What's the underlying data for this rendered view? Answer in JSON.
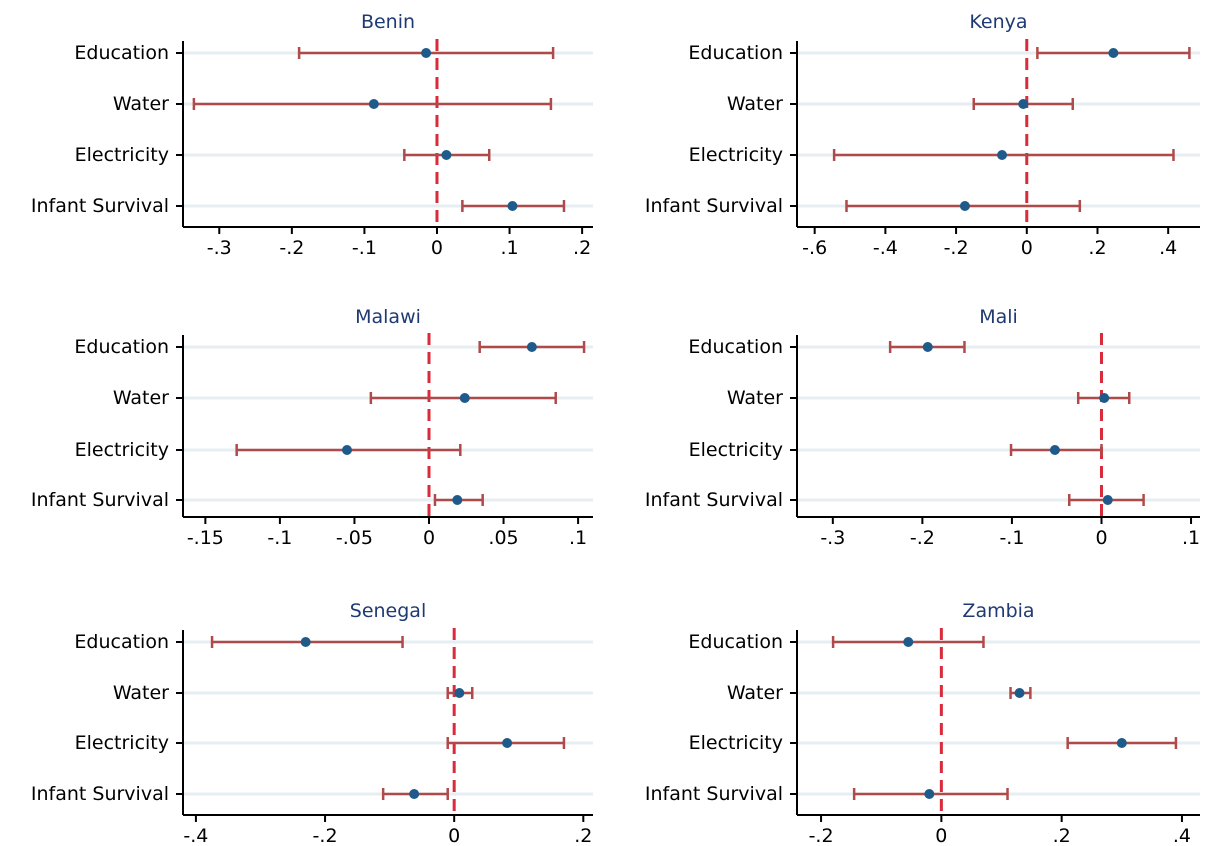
{
  "figure": {
    "colors": {
      "point": "#1f5b8a",
      "interval": "#b04a4a",
      "zero_line": "#d92b3a",
      "grid": "#e6eef2",
      "title": "#1f3a73",
      "axis": "#000000"
    }
  },
  "chart_data": [
    {
      "type": "scatter",
      "title": "Benin",
      "categories": [
        "Education",
        "Water",
        "Electricity",
        "Infant Survival"
      ],
      "estimates": [
        -0.015,
        -0.087,
        0.013,
        0.104
      ],
      "ci_low": [
        -0.19,
        -0.335,
        -0.045,
        0.035
      ],
      "ci_high": [
        0.16,
        0.157,
        0.072,
        0.175
      ],
      "xlim": [
        -0.35,
        0.215
      ],
      "xticks": [
        -0.3,
        -0.2,
        -0.1,
        0,
        0.1,
        0.2
      ],
      "xtick_labels": [
        "-.3",
        "-.2",
        "-.1",
        "0",
        ".1",
        ".2"
      ],
      "reference_line": 0,
      "grid": true
    },
    {
      "type": "scatter",
      "title": "Kenya",
      "categories": [
        "Education",
        "Water",
        "Electricity",
        "Infant Survival"
      ],
      "estimates": [
        0.245,
        -0.01,
        -0.07,
        -0.175
      ],
      "ci_low": [
        0.03,
        -0.15,
        -0.545,
        -0.51
      ],
      "ci_high": [
        0.46,
        0.13,
        0.415,
        0.15
      ],
      "xlim": [
        -0.65,
        0.49
      ],
      "xticks": [
        -0.6,
        -0.4,
        -0.2,
        0,
        0.2,
        0.4
      ],
      "xtick_labels": [
        "-.6",
        "-.4",
        "-.2",
        "0",
        ".2",
        ".4"
      ],
      "reference_line": 0,
      "grid": true
    },
    {
      "type": "scatter",
      "title": "Malawi",
      "categories": [
        "Education",
        "Water",
        "Electricity",
        "Infant Survival"
      ],
      "estimates": [
        0.069,
        0.024,
        -0.055,
        0.019
      ],
      "ci_low": [
        0.034,
        -0.039,
        -0.129,
        0.004
      ],
      "ci_high": [
        0.104,
        0.085,
        0.021,
        0.036
      ],
      "xlim": [
        -0.165,
        0.11
      ],
      "xticks": [
        -0.15,
        -0.1,
        -0.05,
        0,
        0.05,
        0.1
      ],
      "xtick_labels": [
        "-.15",
        "-.1",
        "-.05",
        "0",
        ".05",
        ".1"
      ],
      "reference_line": 0,
      "grid": true
    },
    {
      "type": "scatter",
      "title": "Mali",
      "categories": [
        "Education",
        "Water",
        "Electricity",
        "Infant Survival"
      ],
      "estimates": [
        -0.194,
        0.003,
        -0.052,
        0.007
      ],
      "ci_low": [
        -0.236,
        -0.026,
        -0.101,
        -0.036
      ],
      "ci_high": [
        -0.153,
        0.031,
        0.0,
        0.047
      ],
      "xlim": [
        -0.34,
        0.11
      ],
      "xticks": [
        -0.3,
        -0.2,
        -0.1,
        0,
        0.1
      ],
      "xtick_labels": [
        "-.3",
        "-.2",
        "-.1",
        "0",
        ".1"
      ],
      "reference_line": 0,
      "grid": true
    },
    {
      "type": "scatter",
      "title": "Senegal",
      "categories": [
        "Education",
        "Water",
        "Electricity",
        "Infant Survival"
      ],
      "estimates": [
        -0.23,
        0.008,
        0.082,
        -0.062
      ],
      "ci_low": [
        -0.375,
        -0.01,
        -0.01,
        -0.11
      ],
      "ci_high": [
        -0.08,
        0.028,
        0.17,
        -0.01
      ],
      "xlim": [
        -0.42,
        0.215
      ],
      "xticks": [
        -0.4,
        -0.2,
        0,
        0.2
      ],
      "xtick_labels": [
        "-.4",
        "-.2",
        "0",
        ".2"
      ],
      "reference_line": 0,
      "grid": true
    },
    {
      "type": "scatter",
      "title": "Zambia",
      "categories": [
        "Education",
        "Water",
        "Electricity",
        "Infant Survival"
      ],
      "estimates": [
        -0.055,
        0.13,
        0.3,
        -0.02
      ],
      "ci_low": [
        -0.18,
        0.115,
        0.21,
        -0.145
      ],
      "ci_high": [
        0.07,
        0.148,
        0.39,
        0.11
      ],
      "xlim": [
        -0.24,
        0.43
      ],
      "xticks": [
        -0.2,
        0,
        0.2,
        0.4
      ],
      "xtick_labels": [
        "-.2",
        "0",
        ".2",
        ".4"
      ],
      "reference_line": 0,
      "grid": true
    }
  ]
}
